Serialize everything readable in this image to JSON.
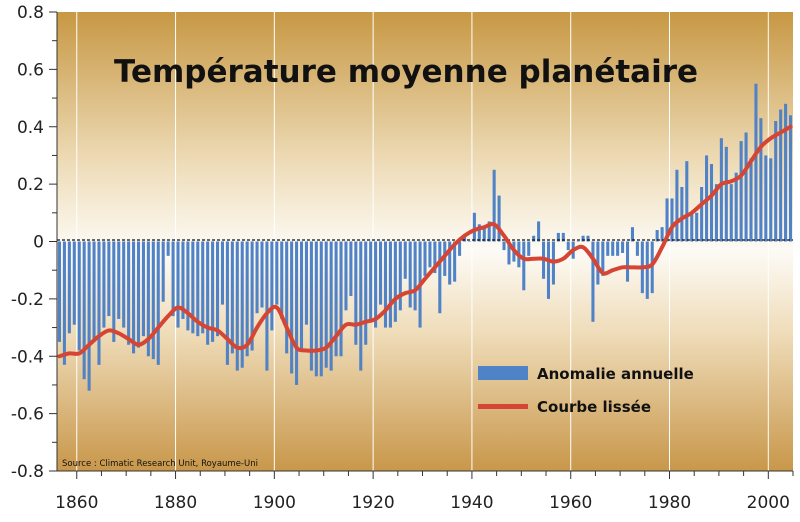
{
  "chart_data": {
    "type": "bar",
    "title": "Température moyenne planétaire",
    "source": "Source : Climatic Research Unit, Royaume-Uni",
    "xlabel": "",
    "ylabel": "",
    "xlim": [
      1856,
      2005
    ],
    "ylim": [
      -0.8,
      0.8
    ],
    "x_ticks": [
      "1860",
      "1880",
      "1900",
      "1920",
      "1940",
      "1960",
      "1980",
      "2000"
    ],
    "y_ticks": [
      "0.8",
      "0.6",
      "0.4",
      "0.2",
      "0",
      "-0.2",
      "-0.4",
      "-0.6",
      "-0.8"
    ],
    "grid": "vertical",
    "legend_position": "bottom-right",
    "colors": {
      "bars": "#4f82c6",
      "smooth": "#d64533",
      "background_edge": "#c79740",
      "background_center": "#fdfbf5"
    },
    "series": [
      {
        "name": "Anomalie annuelle",
        "type": "bar",
        "x": [
          1856,
          1857,
          1858,
          1859,
          1860,
          1861,
          1862,
          1863,
          1864,
          1865,
          1866,
          1867,
          1868,
          1869,
          1870,
          1871,
          1872,
          1873,
          1874,
          1875,
          1876,
          1877,
          1878,
          1879,
          1880,
          1881,
          1882,
          1883,
          1884,
          1885,
          1886,
          1887,
          1888,
          1889,
          1890,
          1891,
          1892,
          1893,
          1894,
          1895,
          1896,
          1897,
          1898,
          1899,
          1900,
          1901,
          1902,
          1903,
          1904,
          1905,
          1906,
          1907,
          1908,
          1909,
          1910,
          1911,
          1912,
          1913,
          1914,
          1915,
          1916,
          1917,
          1918,
          1919,
          1920,
          1921,
          1922,
          1923,
          1924,
          1925,
          1926,
          1927,
          1928,
          1929,
          1930,
          1931,
          1932,
          1933,
          1934,
          1935,
          1936,
          1937,
          1938,
          1939,
          1940,
          1941,
          1942,
          1943,
          1944,
          1945,
          1946,
          1947,
          1948,
          1949,
          1950,
          1951,
          1952,
          1953,
          1954,
          1955,
          1956,
          1957,
          1958,
          1959,
          1960,
          1961,
          1962,
          1963,
          1964,
          1965,
          1966,
          1967,
          1968,
          1969,
          1970,
          1971,
          1972,
          1973,
          1974,
          1975,
          1976,
          1977,
          1978,
          1979,
          1980,
          1981,
          1982,
          1983,
          1984,
          1985,
          1986,
          1987,
          1988,
          1989,
          1990,
          1991,
          1992,
          1993,
          1994,
          1995,
          1996,
          1997,
          1998,
          1999,
          2000,
          2001,
          2002,
          2003,
          2004
        ],
        "values": [
          -0.35,
          -0.43,
          -0.32,
          -0.29,
          -0.38,
          -0.48,
          -0.52,
          -0.35,
          -0.43,
          -0.3,
          -0.26,
          -0.35,
          -0.27,
          -0.3,
          -0.36,
          -0.39,
          -0.37,
          -0.33,
          -0.4,
          -0.41,
          -0.43,
          -0.21,
          -0.05,
          -0.26,
          -0.3,
          -0.27,
          -0.31,
          -0.32,
          -0.33,
          -0.32,
          -0.36,
          -0.35,
          -0.33,
          -0.22,
          -0.43,
          -0.39,
          -0.45,
          -0.44,
          -0.4,
          -0.38,
          -0.25,
          -0.23,
          -0.45,
          -0.31,
          -0.22,
          -0.27,
          -0.39,
          -0.46,
          -0.5,
          -0.38,
          -0.29,
          -0.45,
          -0.47,
          -0.47,
          -0.44,
          -0.45,
          -0.4,
          -0.4,
          -0.24,
          -0.19,
          -0.36,
          -0.45,
          -0.36,
          -0.28,
          -0.3,
          -0.22,
          -0.3,
          -0.3,
          -0.28,
          -0.24,
          -0.13,
          -0.23,
          -0.24,
          -0.3,
          -0.12,
          -0.09,
          -0.11,
          -0.25,
          -0.12,
          -0.15,
          -0.14,
          -0.05,
          0.02,
          0.0,
          0.1,
          0.06,
          0.05,
          0.07,
          0.25,
          0.16,
          -0.03,
          -0.08,
          -0.07,
          -0.09,
          -0.17,
          -0.05,
          0.02,
          0.07,
          -0.13,
          -0.2,
          -0.15,
          0.03,
          0.03,
          -0.03,
          -0.06,
          0.0,
          0.02,
          0.02,
          -0.28,
          -0.15,
          -0.12,
          -0.05,
          -0.05,
          -0.05,
          -0.04,
          -0.14,
          0.05,
          -0.05,
          -0.18,
          -0.2,
          -0.18,
          0.04,
          0.05,
          0.15,
          0.15,
          0.25,
          0.19,
          0.28,
          0.1,
          0.1,
          0.19,
          0.3,
          0.27,
          0.2,
          0.36,
          0.33,
          0.2,
          0.24,
          0.35,
          0.38,
          0.29,
          0.55,
          0.43,
          0.3,
          0.29,
          0.42,
          0.46,
          0.48,
          0.44
        ],
        "color": "#4f82c6"
      },
      {
        "name": "Courbe lissée",
        "type": "line",
        "x": [
          1856,
          1858,
          1860,
          1862,
          1864,
          1866,
          1868,
          1870,
          1872,
          1874,
          1876,
          1878,
          1880,
          1882,
          1884,
          1886,
          1888,
          1890,
          1892,
          1894,
          1896,
          1898,
          1900,
          1902,
          1904,
          1906,
          1908,
          1910,
          1912,
          1914,
          1916,
          1918,
          1920,
          1922,
          1924,
          1926,
          1928,
          1930,
          1932,
          1934,
          1936,
          1938,
          1940,
          1942,
          1944,
          1946,
          1948,
          1950,
          1952,
          1954,
          1956,
          1958,
          1960,
          1962,
          1964,
          1966,
          1968,
          1970,
          1972,
          1974,
          1976,
          1978,
          1980,
          1982,
          1984,
          1986,
          1988,
          1990,
          1992,
          1994,
          1996,
          1998,
          2000,
          2002,
          2004
        ],
        "values": [
          -0.4,
          -0.39,
          -0.39,
          -0.36,
          -0.33,
          -0.31,
          -0.32,
          -0.34,
          -0.36,
          -0.34,
          -0.3,
          -0.26,
          -0.23,
          -0.25,
          -0.28,
          -0.3,
          -0.31,
          -0.34,
          -0.37,
          -0.36,
          -0.3,
          -0.25,
          -0.23,
          -0.3,
          -0.37,
          -0.38,
          -0.38,
          -0.37,
          -0.33,
          -0.29,
          -0.29,
          -0.28,
          -0.27,
          -0.24,
          -0.2,
          -0.18,
          -0.17,
          -0.13,
          -0.09,
          -0.05,
          -0.01,
          0.02,
          0.04,
          0.05,
          0.06,
          0.02,
          -0.03,
          -0.06,
          -0.06,
          -0.06,
          -0.07,
          -0.06,
          -0.03,
          -0.02,
          -0.06,
          -0.11,
          -0.1,
          -0.09,
          -0.09,
          -0.09,
          -0.08,
          -0.02,
          0.05,
          0.08,
          0.1,
          0.13,
          0.16,
          0.2,
          0.21,
          0.23,
          0.28,
          0.33,
          0.36,
          0.38,
          0.4
        ],
        "color": "#d64533"
      }
    ]
  }
}
